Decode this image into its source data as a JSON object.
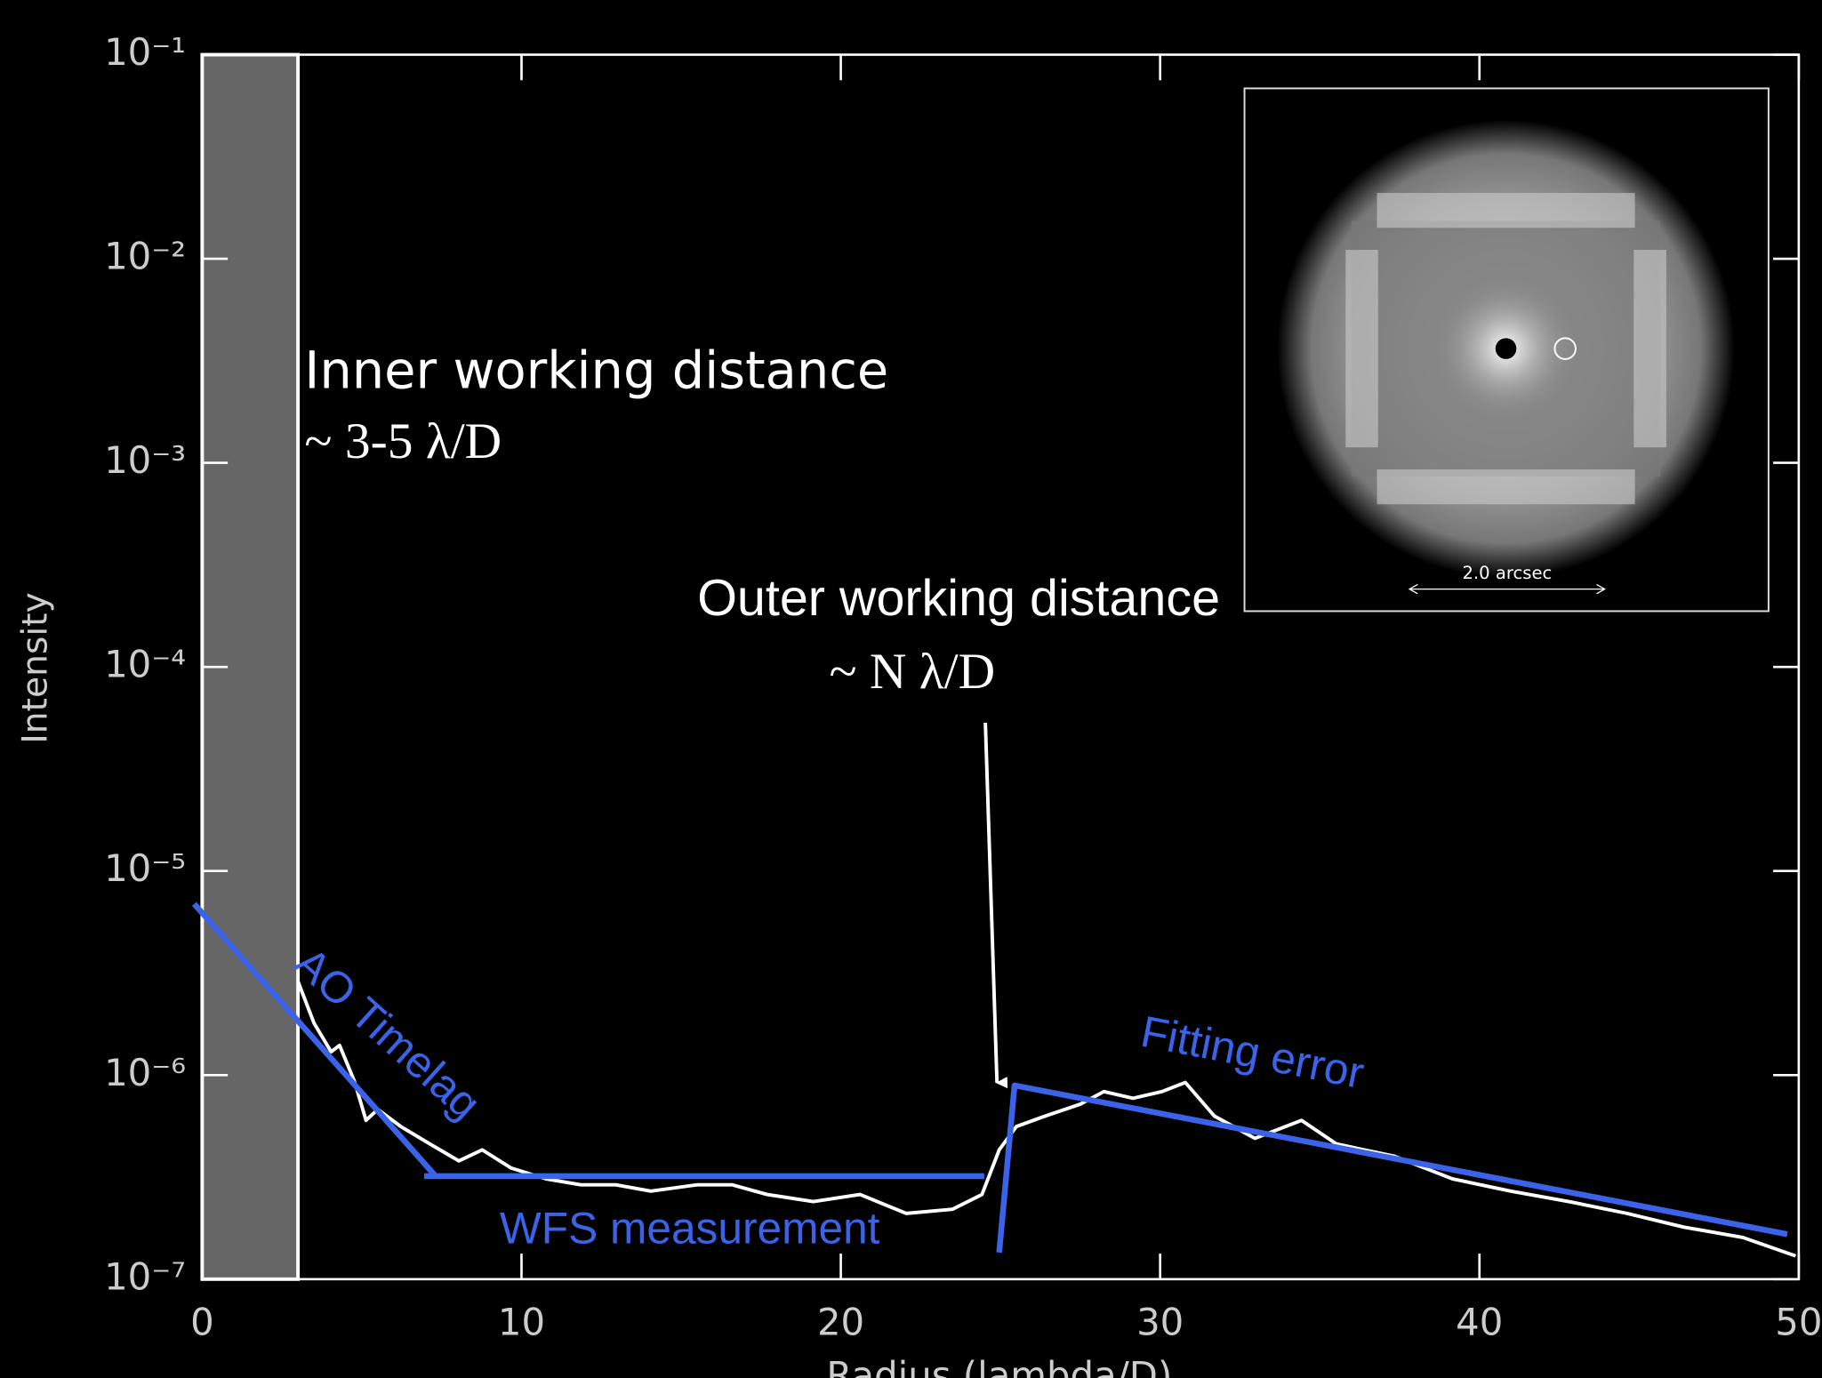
{
  "chart_data": {
    "type": "line",
    "x_label": "Radius (lambda/D)",
    "y_label": "Intensity",
    "log_y": true,
    "xlim": [
      0,
      50
    ],
    "ylim": [
      1e-07,
      0.1
    ],
    "xticks": [
      0,
      10,
      20,
      30,
      40,
      50
    ],
    "yticks": [
      {
        "value": 0.1,
        "label": "10⁻¹"
      },
      {
        "value": 0.01,
        "label": "10⁻²"
      },
      {
        "value": 0.001,
        "label": "10⁻³"
      },
      {
        "value": 0.0001,
        "label": "10⁻⁴"
      },
      {
        "value": 1e-05,
        "label": "10⁻⁵"
      },
      {
        "value": 1e-06,
        "label": "10⁻⁶"
      },
      {
        "value": 1e-07,
        "label": "10⁻⁷"
      }
    ],
    "shaded_band": {
      "x": [
        0,
        3
      ],
      "color": "#666666"
    },
    "profile": {
      "color": "#ffffff",
      "x": [
        2.99,
        3.5,
        4.04,
        4.3,
        4.77,
        5.13,
        5.5,
        6.22,
        7.13,
        8.04,
        8.77,
        9.68,
        10.77,
        11.86,
        12.95,
        14.05,
        15.5,
        16.6,
        17.69,
        19.14,
        20.6,
        22.05,
        23.5,
        24.42,
        24.96,
        25.5,
        26.4,
        27.5,
        28.24,
        29.15,
        30.06,
        30.79,
        31.7,
        32.97,
        34.43,
        35.52,
        37.34,
        39.16,
        40.98,
        42.8,
        44.62,
        46.4,
        48.25,
        49.9
      ],
      "values": [
        2.9e-06,
        1.8e-06,
        1.3e-06,
        1.4e-06,
        9.3e-07,
        6e-07,
        6.8e-07,
        5.6e-07,
        4.6e-07,
        3.8e-07,
        4.3e-07,
        3.5e-07,
        3.1e-07,
        2.9e-07,
        2.9e-07,
        2.7e-07,
        2.9e-07,
        2.9e-07,
        2.6e-07,
        2.4e-07,
        2.6e-07,
        2.1e-07,
        2.2e-07,
        2.6e-07,
        4.3e-07,
        5.6e-07,
        6.3e-07,
        7.2e-07,
        8.3e-07,
        7.7e-07,
        8.3e-07,
        9.2e-07,
        6.3e-07,
        4.9e-07,
        6e-07,
        4.6e-07,
        4e-07,
        3.1e-07,
        2.7e-07,
        2.4e-07,
        2.1e-07,
        1.8e-07,
        1.6e-07,
        1.3e-07
      ]
    },
    "series": [
      {
        "name": "AO Timelag",
        "color": "#3b63e8",
        "x": [
          -0.25,
          7.31
        ],
        "values": [
          6.9e-06,
          3.2e-07
        ]
      },
      {
        "name": "WFS measurement",
        "color": "#3b63e8",
        "x": [
          6.95,
          24.49
        ],
        "values": [
          3.2e-07,
          3.2e-07
        ]
      },
      {
        "name": "Fitting error",
        "color": "#3b63e8",
        "x": [
          24.96,
          25.44,
          49.64
        ],
        "values": [
          1.35e-07,
          8.9e-07,
          1.66e-07
        ]
      }
    ],
    "annotations": {
      "inner_title": "Inner working distance",
      "inner_range": "~ 3-5 λ/D",
      "outer_title": "Outer working distance",
      "outer_range": "~ N λ/D"
    },
    "inset_scale_label": "2.0 arcsec"
  }
}
